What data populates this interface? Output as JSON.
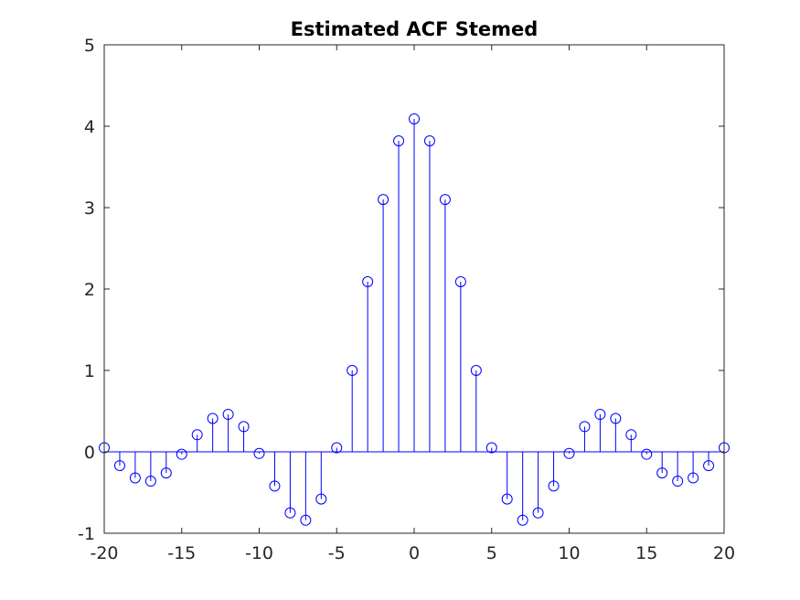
{
  "chart_data": {
    "type": "stem",
    "title": "Estimated ACF Stemed",
    "xlabel": "",
    "ylabel": "",
    "xlim": [
      -20,
      20
    ],
    "ylim": [
      -1,
      5
    ],
    "xticks": [
      "-20",
      "-15",
      "-10",
      "-5",
      "0",
      "5",
      "10",
      "15",
      "20"
    ],
    "yticks": [
      "-1",
      "0",
      "1",
      "2",
      "3",
      "4",
      "5"
    ],
    "grid": false,
    "color": "#0000ff",
    "x": [
      -20,
      -19,
      -18,
      -17,
      -16,
      -15,
      -14,
      -13,
      -12,
      -11,
      -10,
      -9,
      -8,
      -7,
      -6,
      -5,
      -4,
      -3,
      -2,
      -1,
      0,
      1,
      2,
      3,
      4,
      5,
      6,
      7,
      8,
      9,
      10,
      11,
      12,
      13,
      14,
      15,
      16,
      17,
      18,
      19,
      20
    ],
    "values": [
      0.05,
      -0.17,
      -0.32,
      -0.36,
      -0.26,
      -0.03,
      0.21,
      0.41,
      0.46,
      0.31,
      -0.02,
      -0.42,
      -0.75,
      -0.84,
      -0.58,
      0.05,
      1.0,
      2.09,
      3.1,
      3.82,
      4.09,
      3.82,
      3.1,
      2.09,
      1.0,
      0.05,
      -0.58,
      -0.84,
      -0.75,
      -0.42,
      -0.02,
      0.31,
      0.46,
      0.41,
      0.21,
      -0.03,
      -0.26,
      -0.36,
      -0.32,
      -0.17,
      0.05
    ]
  }
}
